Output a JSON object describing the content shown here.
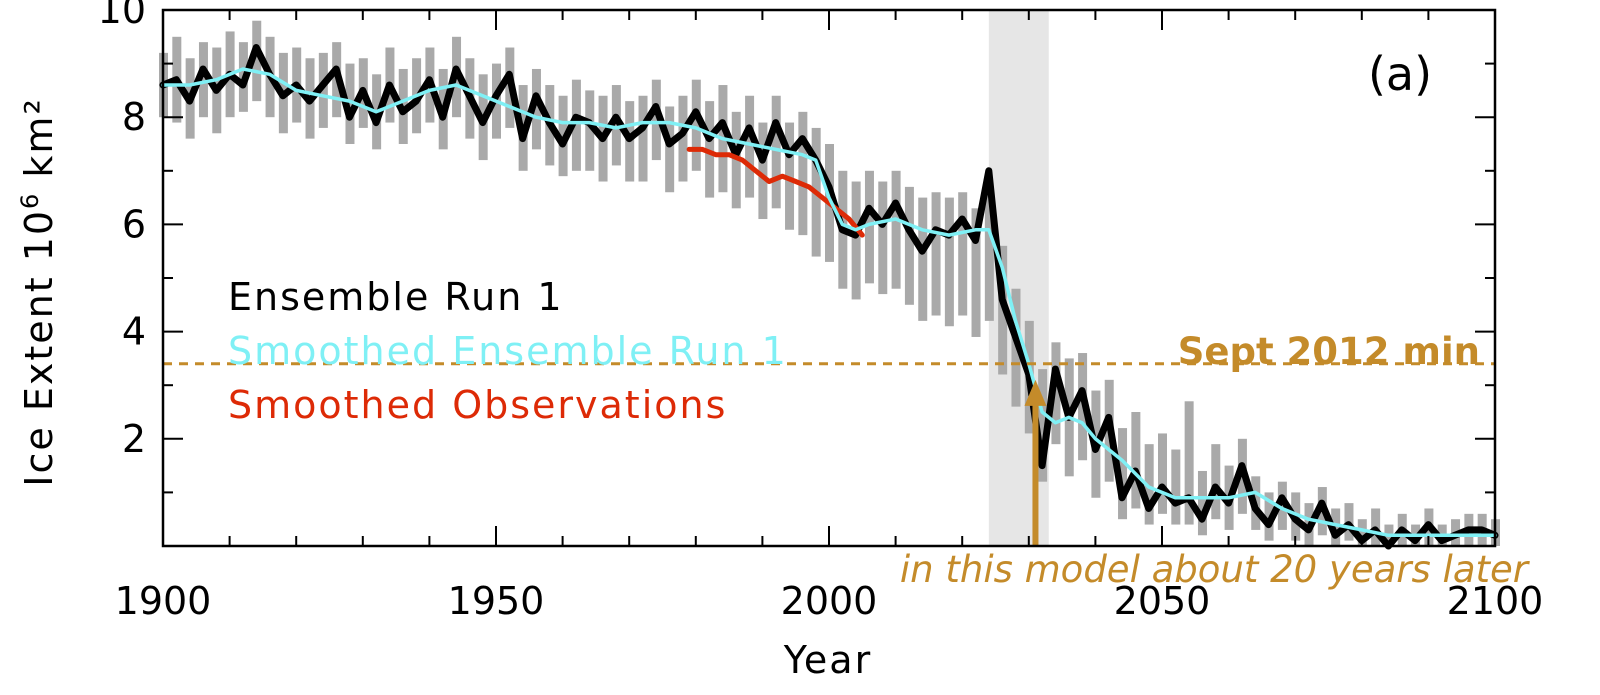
{
  "chart_data": {
    "type": "line",
    "title": "",
    "panel_label": "(a)",
    "xlabel": "Year",
    "ylabel_main": "Ice Extent 10",
    "ylabel_sup": "6",
    "ylabel_unit": " km²",
    "xlim": [
      1900,
      2100
    ],
    "ylim": [
      0,
      10
    ],
    "x_ticks": [
      1900,
      1950,
      2000,
      2050,
      2100
    ],
    "y_ticks": [
      2,
      4,
      6,
      8,
      10
    ],
    "grid": false,
    "legend_position": "middle-left",
    "colors": {
      "ensemble": "#000000",
      "smoothed": "#7ff0f5",
      "observations": "#dd2a06",
      "spread": "#a9a9a9",
      "shade": "#e6e6e6",
      "annotation": "#c48b2a"
    },
    "series": [
      {
        "name": "Ensemble Run 1",
        "x": [
          1900,
          1902,
          1904,
          1906,
          1908,
          1910,
          1912,
          1914,
          1916,
          1918,
          1920,
          1922,
          1924,
          1926,
          1928,
          1930,
          1932,
          1934,
          1936,
          1938,
          1940,
          1942,
          1944,
          1946,
          1948,
          1950,
          1952,
          1954,
          1956,
          1958,
          1960,
          1962,
          1964,
          1966,
          1968,
          1970,
          1972,
          1974,
          1976,
          1978,
          1980,
          1982,
          1984,
          1986,
          1988,
          1990,
          1992,
          1994,
          1996,
          1998,
          2000,
          2002,
          2004,
          2006,
          2008,
          2010,
          2012,
          2014,
          2016,
          2018,
          2020,
          2022,
          2024,
          2026,
          2028,
          2030,
          2032,
          2034,
          2036,
          2038,
          2040,
          2042,
          2044,
          2046,
          2048,
          2050,
          2052,
          2054,
          2056,
          2058,
          2060,
          2062,
          2064,
          2066,
          2068,
          2070,
          2072,
          2074,
          2076,
          2078,
          2080,
          2082,
          2084,
          2086,
          2088,
          2090,
          2092,
          2094,
          2096,
          2098,
          2100
        ],
        "values": [
          8.6,
          8.7,
          8.3,
          8.9,
          8.5,
          8.8,
          8.6,
          9.3,
          8.8,
          8.4,
          8.6,
          8.3,
          8.6,
          8.9,
          8.0,
          8.5,
          7.9,
          8.6,
          8.1,
          8.3,
          8.7,
          8.0,
          8.9,
          8.4,
          7.9,
          8.4,
          8.8,
          7.6,
          8.4,
          7.9,
          7.5,
          8.0,
          7.9,
          7.6,
          8.0,
          7.6,
          7.8,
          8.2,
          7.5,
          7.7,
          8.1,
          7.6,
          7.9,
          7.3,
          7.8,
          7.2,
          7.9,
          7.3,
          7.6,
          7.2,
          6.7,
          5.9,
          5.8,
          6.3,
          6.0,
          6.4,
          5.9,
          5.5,
          5.9,
          5.8,
          6.1,
          5.7,
          7.0,
          4.6,
          3.9,
          3.2,
          1.5,
          3.3,
          2.4,
          2.9,
          1.8,
          2.4,
          0.9,
          1.4,
          0.7,
          1.1,
          0.8,
          0.9,
          0.5,
          1.1,
          0.8,
          1.5,
          0.7,
          0.4,
          0.9,
          0.5,
          0.3,
          0.8,
          0.2,
          0.4,
          0.1,
          0.3,
          0.0,
          0.3,
          0.1,
          0.4,
          0.1,
          0.2,
          0.3,
          0.3,
          0.2
        ]
      },
      {
        "name": "Smoothed Ensemble Run 1",
        "x": [
          1900,
          1904,
          1908,
          1912,
          1916,
          1920,
          1924,
          1928,
          1932,
          1936,
          1940,
          1944,
          1948,
          1952,
          1956,
          1960,
          1964,
          1968,
          1972,
          1976,
          1980,
          1984,
          1988,
          1992,
          1996,
          1998,
          2000,
          2002,
          2004,
          2006,
          2010,
          2014,
          2018,
          2022,
          2024,
          2026,
          2028,
          2030,
          2032,
          2034,
          2036,
          2038,
          2040,
          2044,
          2048,
          2052,
          2056,
          2060,
          2064,
          2068,
          2072,
          2076,
          2080,
          2084,
          2088,
          2092,
          2096,
          2100
        ],
        "values": [
          8.6,
          8.6,
          8.7,
          8.9,
          8.8,
          8.5,
          8.4,
          8.3,
          8.1,
          8.3,
          8.5,
          8.6,
          8.4,
          8.2,
          8.0,
          7.9,
          7.9,
          7.8,
          7.9,
          7.9,
          7.8,
          7.6,
          7.5,
          7.4,
          7.3,
          7.2,
          6.5,
          6.0,
          5.9,
          6.0,
          6.1,
          5.9,
          5.8,
          5.9,
          5.9,
          5.2,
          4.2,
          3.4,
          2.5,
          2.3,
          2.4,
          2.3,
          2.0,
          1.6,
          1.1,
          0.9,
          0.9,
          0.9,
          1.0,
          0.7,
          0.5,
          0.4,
          0.3,
          0.2,
          0.2,
          0.2,
          0.2,
          0.2
        ]
      },
      {
        "name": "Smoothed Observations",
        "x": [
          1979,
          1981,
          1983,
          1985,
          1987,
          1989,
          1991,
          1993,
          1995,
          1997,
          1999,
          2001,
          2003,
          2005
        ],
        "values": [
          7.4,
          7.4,
          7.3,
          7.3,
          7.2,
          7.0,
          6.8,
          6.9,
          6.8,
          6.7,
          6.5,
          6.3,
          6.1,
          5.8
        ]
      }
    ],
    "spread_band": {
      "name": "Ensemble spread",
      "x_start": 1900,
      "x_step": 2,
      "low": [
        8.0,
        7.9,
        7.6,
        8.0,
        7.7,
        8.0,
        8.1,
        8.3,
        8.0,
        7.7,
        7.9,
        7.6,
        7.8,
        8.0,
        7.5,
        7.8,
        7.4,
        7.9,
        7.5,
        7.7,
        7.9,
        7.4,
        8.0,
        7.6,
        7.2,
        7.6,
        7.8,
        7.0,
        7.4,
        7.1,
        6.9,
        7.0,
        7.0,
        6.8,
        7.1,
        6.8,
        6.8,
        7.2,
        6.6,
        6.8,
        7.0,
        6.5,
        6.6,
        6.3,
        6.5,
        6.1,
        6.3,
        5.9,
        5.8,
        5.4,
        5.3,
        4.8,
        4.6,
        4.9,
        4.7,
        4.8,
        4.5,
        4.2,
        4.3,
        4.1,
        4.3,
        3.9,
        4.2,
        3.2,
        2.6,
        2.1,
        1.2,
        1.9,
        1.3,
        1.6,
        0.9,
        1.2,
        0.5,
        0.7,
        0.4,
        0.6,
        0.4,
        0.4,
        0.2,
        0.5,
        0.3,
        0.6,
        0.3,
        0.1,
        0.3,
        0.1,
        0.0,
        0.2,
        0.0,
        0.1,
        0.0,
        0.0,
        0.0,
        0.0,
        0.0,
        0.0,
        0.0,
        0.0,
        0.0,
        0.0,
        0.0
      ],
      "high": [
        9.2,
        9.5,
        9.1,
        9.4,
        9.3,
        9.6,
        9.4,
        9.8,
        9.5,
        9.2,
        9.3,
        9.1,
        9.2,
        9.4,
        9.0,
        9.1,
        8.8,
        9.3,
        8.9,
        9.1,
        9.3,
        8.9,
        9.5,
        9.1,
        8.8,
        9.0,
        9.3,
        8.6,
        8.9,
        8.6,
        8.4,
        8.7,
        8.5,
        8.4,
        8.6,
        8.3,
        8.4,
        8.7,
        8.2,
        8.4,
        8.7,
        8.3,
        8.6,
        8.1,
        8.4,
        7.9,
        8.4,
        7.9,
        8.1,
        7.8,
        7.5,
        7.0,
        6.8,
        7.0,
        6.8,
        7.0,
        6.7,
        6.5,
        6.6,
        6.5,
        6.6,
        6.3,
        6.7,
        5.6,
        4.8,
        4.2,
        3.3,
        3.8,
        3.5,
        3.6,
        2.9,
        3.1,
        2.2,
        2.5,
        1.9,
        2.1,
        1.8,
        2.7,
        1.4,
        1.9,
        1.5,
        2.0,
        1.3,
        1.0,
        1.2,
        1.0,
        0.8,
        1.1,
        0.7,
        0.8,
        0.5,
        0.7,
        0.4,
        0.6,
        0.4,
        0.7,
        0.4,
        0.5,
        0.6,
        0.6,
        0.5
      ]
    },
    "shaded_region": {
      "x": [
        2024,
        2033
      ]
    },
    "reference_line": {
      "label": "Sept 2012 min",
      "value": 3.4
    },
    "arrow": {
      "x": 2031,
      "y_from": 0,
      "y_to": 3.1
    },
    "annotation": "in this model about 20 years later"
  }
}
